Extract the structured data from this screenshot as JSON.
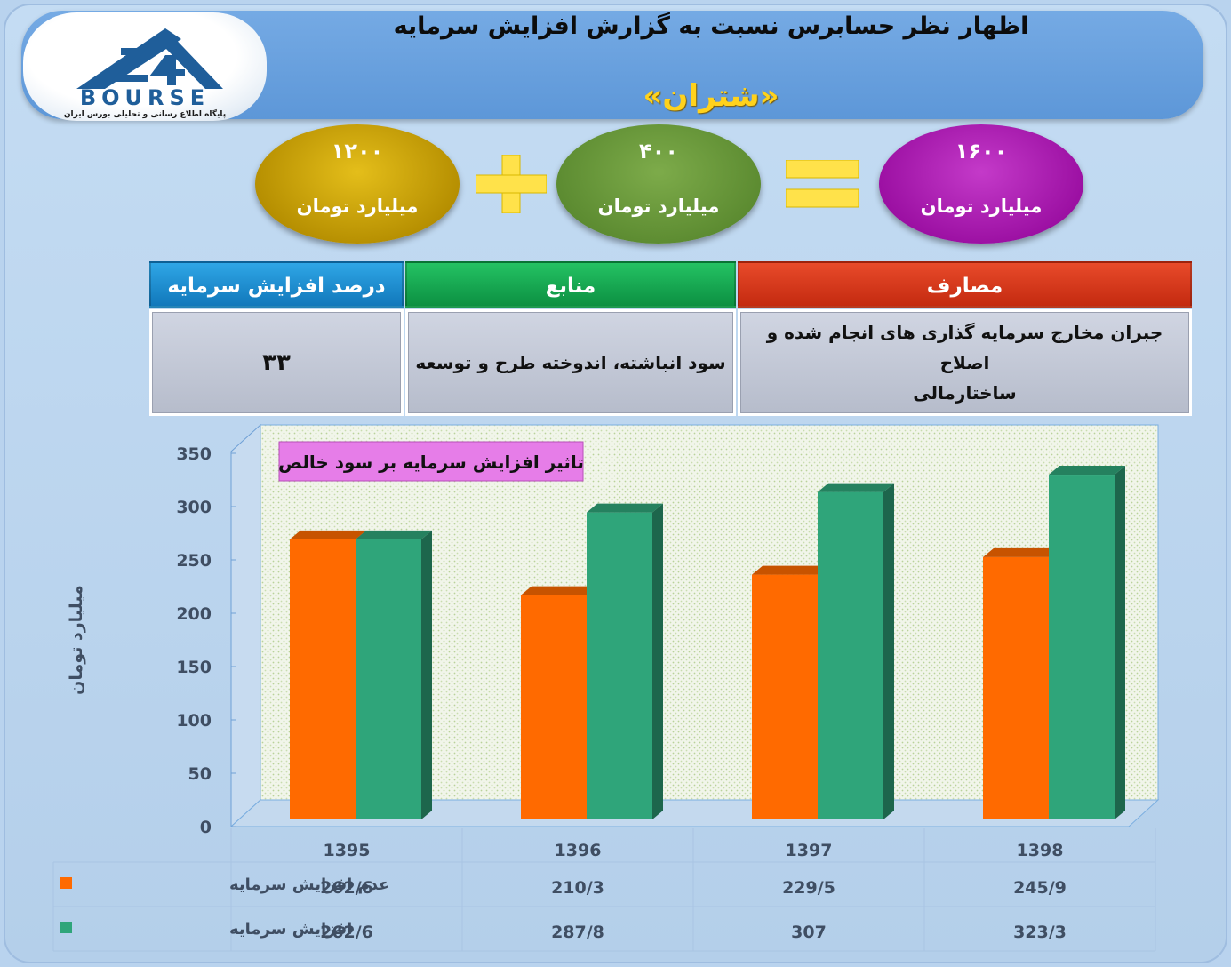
{
  "header": {
    "title": "اظهار نظر حسابرس نسبت به گزارش افزایش سرمایه",
    "company": "«شتران»"
  },
  "logo": {
    "text": "BOURSE",
    "subtitle": "پایگاه اطلاع رسانی و تحلیلی بورس ایران",
    "icon": "24-logo-icon",
    "color": "#1f5e9a"
  },
  "summary": {
    "left": {
      "value": "۱۲۰۰",
      "unit": "میلیارد تومان",
      "color": "#c9a000"
    },
    "operator_plus": "plus-icon",
    "middle": {
      "value": "۴۰۰",
      "unit": "میلیارد تومان",
      "color": "#5d8f33"
    },
    "operator_equals": "equals-icon",
    "right": {
      "value": "۱۶۰۰",
      "unit": "میلیارد تومان",
      "color": "#a116a8"
    }
  },
  "table": {
    "headers": {
      "percent": "درصد افزایش سرمایه",
      "sources": "منابع",
      "uses": "مصارف"
    },
    "values": {
      "percent": "۳۳",
      "sources": "سود انباشته، اندوخته طرح و توسعه",
      "uses_line1": "جبران مخارج سرمایه گذاری های انجام شده و اصلاح",
      "uses_line2": "ساختارمالی"
    },
    "colors": {
      "percent": "#1b86c9",
      "sources": "#12a24e",
      "uses": "#d9341a"
    }
  },
  "chart_data": {
    "type": "bar",
    "title": "تاثیر افزایش سرمایه بر سود خالص",
    "ylabel": "میلیارد تومان",
    "ylim": [
      0,
      350
    ],
    "yticks": [
      0,
      50,
      100,
      150,
      200,
      250,
      300,
      350
    ],
    "categories": [
      "1395",
      "1396",
      "1397",
      "1398"
    ],
    "series": [
      {
        "name": "عدم افزایش سرمایه",
        "values": [
          262.6,
          210.3,
          229.5,
          245.9
        ],
        "labels": [
          "262/6",
          "210/3",
          "229/5",
          "245/9"
        ],
        "color": "#ff6a00"
      },
      {
        "name": "افزایش سرمایه",
        "values": [
          262.6,
          287.8,
          307,
          323.3
        ],
        "labels": [
          "262/6",
          "287/8",
          "307",
          "323/3"
        ],
        "color": "#2fa57a"
      }
    ],
    "grid": false,
    "legend": "data-table-bottom"
  }
}
